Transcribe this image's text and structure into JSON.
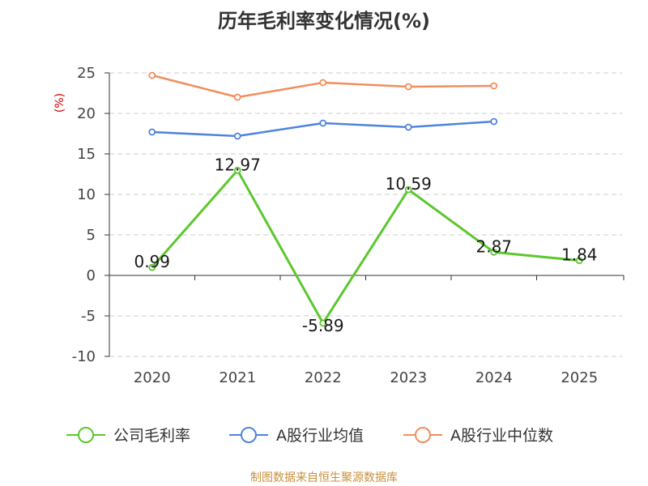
{
  "chart_data": {
    "type": "line",
    "title": "历年毛利率变化情况(%)",
    "ylabel": "(%)",
    "xlabel": "",
    "categories": [
      "2020",
      "2021",
      "2022",
      "2023",
      "2024",
      "2025"
    ],
    "ylim": [
      -10,
      25
    ],
    "yticks": [
      "25",
      "20",
      "15",
      "10",
      "5",
      "0",
      "-5",
      "-10"
    ],
    "grid": true,
    "legend_position": "bottom",
    "series": [
      {
        "name": "公司毛利率",
        "color": "#5cc72e",
        "values": [
          0.99,
          12.97,
          -5.89,
          10.59,
          2.87,
          1.84
        ],
        "labels": [
          "0.99",
          "12.97",
          "-5.89",
          "10.59",
          "2.87",
          "1.84"
        ]
      },
      {
        "name": "A股行业均值",
        "color": "#4f84dc",
        "values": [
          17.7,
          17.2,
          18.8,
          18.3,
          19.0,
          null
        ]
      },
      {
        "name": "A股行业中位数",
        "color": "#f28e5b",
        "values": [
          24.7,
          22.0,
          23.8,
          23.3,
          23.4,
          null
        ]
      }
    ],
    "source": "制图数据来自恒生聚源数据库"
  }
}
